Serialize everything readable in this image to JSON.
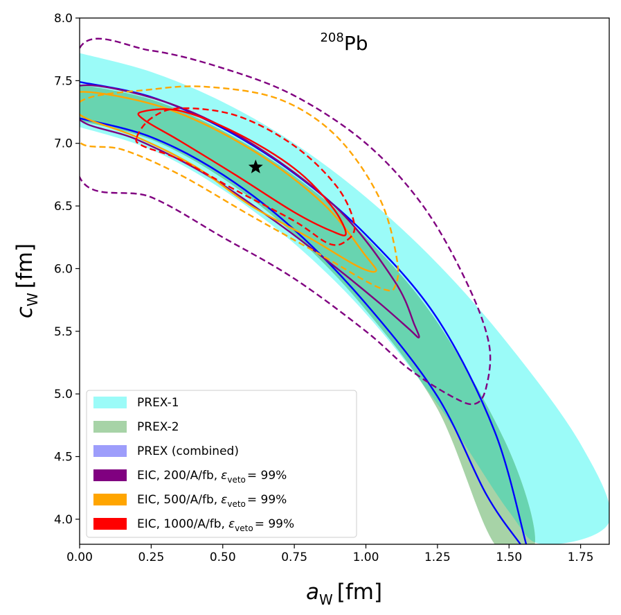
{
  "chart_data": {
    "type": "line",
    "title_nucleus": {
      "mass_number": "208",
      "element": "Pb"
    },
    "xlabel": {
      "symbol": "a",
      "subscript": "W",
      "unit": "[fm]"
    },
    "ylabel": {
      "symbol": "c",
      "subscript": "W",
      "unit": "[fm]"
    },
    "xlim": [
      0.0,
      1.85
    ],
    "ylim": [
      3.8,
      8.0
    ],
    "xticks": [
      "0.00",
      "0.25",
      "0.50",
      "0.75",
      "1.00",
      "1.25",
      "1.50",
      "1.75"
    ],
    "yticks": [
      "4.0",
      "4.5",
      "5.0",
      "5.5",
      "6.0",
      "6.5",
      "7.0",
      "7.5",
      "8.0"
    ],
    "grid": false,
    "legend_position": "lower-left",
    "legend": [
      {
        "label": "PREX-1",
        "color": "#9bfbf8"
      },
      {
        "label": "PREX-2",
        "color": "#a7d3a7"
      },
      {
        "label": "PREX (combined)",
        "color": "#9d9dfb"
      },
      {
        "label": "EIC, 200/A/fb,",
        "eps_symbol": "ε",
        "eps_sub": "veto",
        "eps_value": "= 99%",
        "color": "#800080"
      },
      {
        "label": "EIC, 500/A/fb,",
        "eps_symbol": "ε",
        "eps_sub": "veto",
        "eps_value": "= 99%",
        "color": "#ffa500"
      },
      {
        "label": "EIC, 1000/A/fb,",
        "eps_symbol": "ε",
        "eps_sub": "veto",
        "eps_value": "= 99%",
        "color": "#ff0000"
      }
    ],
    "best_fit_point": {
      "x": 0.615,
      "y": 6.81,
      "marker": "star",
      "color": "#000000"
    },
    "series": [
      {
        "name": "PREX-1",
        "kind": "band",
        "color": "#9bfbf8",
        "upper": [
          [
            0.0,
            7.72
          ],
          [
            0.25,
            7.57
          ],
          [
            0.5,
            7.33
          ],
          [
            0.75,
            7.0
          ],
          [
            1.0,
            6.57
          ],
          [
            1.25,
            6.04
          ],
          [
            1.5,
            5.39
          ],
          [
            1.75,
            4.6
          ],
          [
            1.85,
            3.98
          ]
        ],
        "lower": [
          [
            0.0,
            7.13
          ],
          [
            0.25,
            6.95
          ],
          [
            0.5,
            6.63
          ],
          [
            0.75,
            6.2
          ],
          [
            1.0,
            5.64
          ],
          [
            1.25,
            4.92
          ],
          [
            1.5,
            4.06
          ],
          [
            1.62,
            3.8
          ]
        ]
      },
      {
        "name": "PREX-2",
        "kind": "band",
        "color": "#a7d3a7",
        "upper": [
          [
            0.0,
            7.47
          ],
          [
            0.25,
            7.35
          ],
          [
            0.5,
            7.1
          ],
          [
            0.75,
            6.74
          ],
          [
            1.0,
            6.25
          ],
          [
            1.25,
            5.57
          ],
          [
            1.5,
            4.55
          ],
          [
            1.59,
            3.8
          ]
        ],
        "lower": [
          [
            0.0,
            7.18
          ],
          [
            0.25,
            7.03
          ],
          [
            0.5,
            6.72
          ],
          [
            0.75,
            6.27
          ],
          [
            1.0,
            5.67
          ],
          [
            1.25,
            4.88
          ],
          [
            1.45,
            3.8
          ]
        ]
      },
      {
        "name": "PREX (combined)",
        "kind": "contour",
        "color": "#0000ff",
        "upper": [
          [
            0.0,
            7.49
          ],
          [
            0.25,
            7.37
          ],
          [
            0.5,
            7.12
          ],
          [
            0.75,
            6.76
          ],
          [
            1.0,
            6.27
          ],
          [
            1.25,
            5.6
          ],
          [
            1.45,
            4.7
          ],
          [
            1.56,
            3.8
          ]
        ],
        "lower": [
          [
            0.0,
            7.2
          ],
          [
            0.25,
            7.05
          ],
          [
            0.5,
            6.75
          ],
          [
            0.75,
            6.31
          ],
          [
            1.0,
            5.72
          ],
          [
            1.25,
            4.98
          ],
          [
            1.42,
            4.2
          ],
          [
            1.54,
            3.8
          ]
        ]
      },
      {
        "name": "EIC 200/A/fb solid",
        "kind": "contour",
        "color": "#800080",
        "dash": false,
        "points": [
          [
            0.0,
            7.46
          ],
          [
            0.3,
            7.33
          ],
          [
            0.6,
            7.0
          ],
          [
            0.9,
            6.48
          ],
          [
            1.1,
            5.9
          ],
          [
            1.17,
            5.55
          ],
          [
            1.185,
            5.45
          ],
          [
            1.15,
            5.52
          ],
          [
            1.05,
            5.72
          ],
          [
            0.9,
            6.0
          ],
          [
            0.7,
            6.35
          ],
          [
            0.45,
            6.74
          ],
          [
            0.2,
            7.03
          ],
          [
            0.0,
            7.19
          ]
        ]
      },
      {
        "name": "EIC 500/A/fb solid",
        "kind": "contour",
        "color": "#ffa500",
        "dash": false,
        "points": [
          [
            0.0,
            7.41
          ],
          [
            0.3,
            7.28
          ],
          [
            0.6,
            6.95
          ],
          [
            0.85,
            6.52
          ],
          [
            1.0,
            6.1
          ],
          [
            1.035,
            5.98
          ],
          [
            0.97,
            6.02
          ],
          [
            0.8,
            6.25
          ],
          [
            0.6,
            6.5
          ],
          [
            0.4,
            6.82
          ],
          [
            0.2,
            7.05
          ],
          [
            0.0,
            7.23
          ]
        ]
      },
      {
        "name": "EIC 1000/A/fb solid",
        "kind": "contour",
        "color": "#ff0000",
        "dash": false,
        "points": [
          [
            0.215,
            7.25
          ],
          [
            0.35,
            7.26
          ],
          [
            0.55,
            7.08
          ],
          [
            0.75,
            6.8
          ],
          [
            0.88,
            6.5
          ],
          [
            0.93,
            6.28
          ],
          [
            0.88,
            6.3
          ],
          [
            0.75,
            6.45
          ],
          [
            0.55,
            6.74
          ],
          [
            0.35,
            7.02
          ],
          [
            0.23,
            7.18
          ]
        ]
      },
      {
        "name": "EIC 200/A/fb dashed",
        "kind": "contour",
        "color": "#800080",
        "dash": true,
        "points": [
          [
            0.0,
            7.76
          ],
          [
            0.25,
            7.74
          ],
          [
            0.5,
            7.6
          ],
          [
            0.75,
            7.38
          ],
          [
            1.0,
            7.0
          ],
          [
            1.2,
            6.5
          ],
          [
            1.35,
            5.9
          ],
          [
            1.43,
            5.4
          ],
          [
            1.42,
            5.05
          ],
          [
            1.38,
            4.92
          ],
          [
            1.3,
            4.98
          ],
          [
            1.15,
            5.2
          ],
          [
            1.0,
            5.5
          ],
          [
            0.75,
            5.92
          ],
          [
            0.5,
            6.25
          ],
          [
            0.25,
            6.57
          ],
          [
            0.0,
            6.73
          ]
        ]
      },
      {
        "name": "EIC 500/A/fb dashed",
        "kind": "contour",
        "color": "#ffa500",
        "dash": true,
        "points": [
          [
            0.0,
            7.33
          ],
          [
            0.25,
            7.43
          ],
          [
            0.45,
            7.45
          ],
          [
            0.7,
            7.35
          ],
          [
            0.9,
            7.05
          ],
          [
            1.05,
            6.55
          ],
          [
            1.11,
            6.05
          ],
          [
            1.1,
            5.85
          ],
          [
            1.07,
            5.83
          ],
          [
            1.0,
            5.9
          ],
          [
            0.85,
            6.1
          ],
          [
            0.6,
            6.42
          ],
          [
            0.35,
            6.75
          ],
          [
            0.15,
            6.95
          ],
          [
            0.0,
            7.01
          ]
        ]
      },
      {
        "name": "EIC 1000/A/fb dashed",
        "kind": "contour",
        "color": "#ff0000",
        "dash": true,
        "points": [
          [
            0.2,
            7.05
          ],
          [
            0.25,
            7.2
          ],
          [
            0.35,
            7.28
          ],
          [
            0.55,
            7.22
          ],
          [
            0.75,
            6.98
          ],
          [
            0.9,
            6.65
          ],
          [
            0.96,
            6.35
          ],
          [
            0.93,
            6.22
          ],
          [
            0.87,
            6.2
          ],
          [
            0.75,
            6.38
          ],
          [
            0.55,
            6.62
          ],
          [
            0.35,
            6.87
          ],
          [
            0.22,
            6.98
          ]
        ]
      }
    ]
  }
}
